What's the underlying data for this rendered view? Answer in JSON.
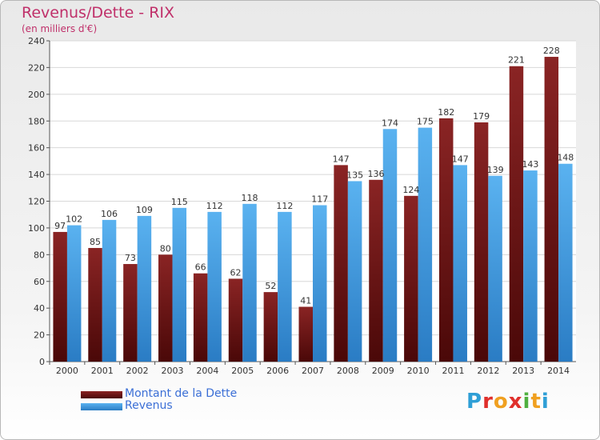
{
  "title": "Revenus/Dette - RIX",
  "subtitle": "(en milliers d'€)",
  "logo": {
    "text": "Proxiti",
    "letter_colors": [
      "#2f9fd6",
      "#e0302c",
      "#f0a020",
      "#e0302c",
      "#50b040",
      "#f0a020",
      "#2f9fd6"
    ]
  },
  "colors": {
    "dette": "#7a1b1b",
    "revenus": "#4aa3e6",
    "title": "#c0306a",
    "legend_text": "#3b6fd6"
  },
  "chart_data": {
    "type": "bar",
    "categories": [
      "2000",
      "2001",
      "2002",
      "2003",
      "2004",
      "2005",
      "2006",
      "2007",
      "2008",
      "2009",
      "2010",
      "2011",
      "2012",
      "2013",
      "2014"
    ],
    "series": [
      {
        "name": "Montant de la Dette",
        "values": [
          97,
          85,
          73,
          80,
          66,
          62,
          52,
          41,
          147,
          136,
          124,
          182,
          179,
          221,
          228
        ]
      },
      {
        "name": "Revenus",
        "values": [
          102,
          106,
          109,
          115,
          112,
          118,
          112,
          117,
          135,
          174,
          175,
          147,
          139,
          143,
          148
        ]
      }
    ],
    "ylim": [
      0,
      240
    ],
    "yticks": [
      0,
      20,
      40,
      60,
      80,
      100,
      120,
      140,
      160,
      180,
      200,
      220,
      240
    ],
    "grid": true,
    "legend": "bottom-left"
  }
}
